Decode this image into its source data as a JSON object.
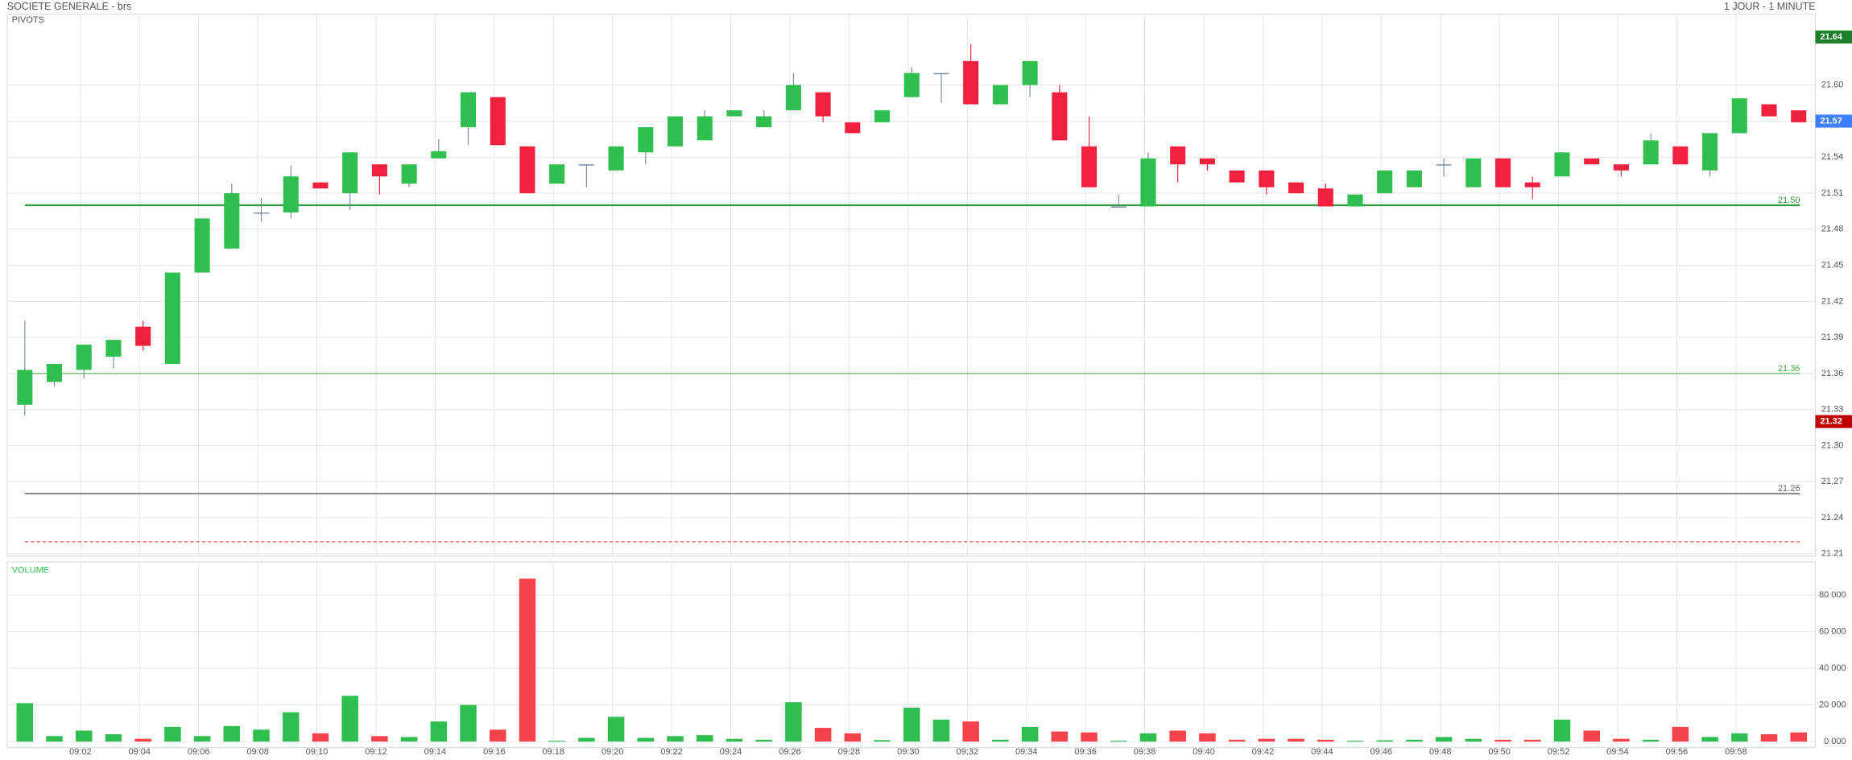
{
  "chart_data": {
    "type": "candlestick",
    "title": "SOCIETE GENERALE - brs",
    "subtitle": "1 JOUR - 1 MINUTE",
    "panel_label": "PIVOTS",
    "up_color": "#2fbf4f",
    "down_color": "#f0213f",
    "categories": [
      null,
      null,
      "09:02",
      null,
      "09:04",
      null,
      "09:06",
      null,
      "09:08",
      null,
      "09:10",
      null,
      "09:12",
      null,
      "09:14",
      null,
      "09:16",
      null,
      "09:18",
      null,
      "09:20",
      null,
      "09:22",
      null,
      "09:24",
      null,
      "09:26",
      null,
      "09:28",
      null,
      "09:30",
      null,
      "09:32",
      null,
      "09:34",
      null,
      "09:36",
      null,
      "09:38",
      null,
      "09:40",
      null,
      "09:42",
      null,
      "09:44",
      null,
      "09:46",
      null,
      "09:48",
      null,
      "09:50",
      null,
      "09:52",
      null,
      "09:54",
      null,
      "09:56",
      null,
      "09:58",
      null,
      null
    ],
    "open": [
      21.334,
      21.353,
      21.363,
      21.374,
      21.399,
      21.368,
      21.444,
      21.464,
      21.494,
      21.494,
      21.519,
      21.51,
      21.534,
      21.518,
      21.539,
      21.565,
      21.59,
      21.549,
      21.518,
      21.534,
      21.529,
      21.544,
      21.549,
      21.554,
      21.574,
      21.565,
      21.579,
      21.594,
      21.569,
      21.569,
      21.59,
      21.61,
      21.62,
      21.584,
      21.6,
      21.594,
      21.549,
      21.499,
      21.499,
      21.549,
      21.539,
      21.529,
      21.529,
      21.519,
      21.514,
      21.499,
      21.51,
      21.515,
      21.534,
      21.515,
      21.539,
      21.519,
      21.524,
      21.539,
      21.534,
      21.534,
      21.549,
      21.529,
      21.56,
      21.584,
      21.579
    ],
    "high": [
      21.404,
      21.368,
      21.384,
      21.388,
      21.404,
      21.444,
      21.489,
      21.518,
      21.506,
      21.533,
      21.519,
      21.544,
      21.534,
      21.534,
      21.555,
      21.594,
      21.59,
      21.549,
      21.534,
      21.534,
      21.549,
      21.565,
      21.574,
      21.579,
      21.579,
      21.579,
      21.61,
      21.594,
      21.569,
      21.579,
      21.615,
      21.61,
      21.634,
      21.6,
      21.62,
      21.6,
      21.574,
      21.509,
      21.544,
      21.549,
      21.539,
      21.529,
      21.529,
      21.519,
      21.518,
      21.509,
      21.529,
      21.529,
      21.539,
      21.539,
      21.539,
      21.524,
      21.544,
      21.539,
      21.534,
      21.56,
      21.549,
      21.56,
      21.589,
      21.584,
      21.579
    ],
    "low": [
      21.325,
      21.349,
      21.356,
      21.364,
      21.379,
      21.368,
      21.444,
      21.464,
      21.486,
      21.489,
      21.514,
      21.496,
      21.509,
      21.515,
      21.539,
      21.55,
      21.55,
      21.51,
      21.518,
      21.515,
      21.529,
      21.534,
      21.549,
      21.554,
      21.574,
      21.565,
      21.579,
      21.569,
      21.56,
      21.569,
      21.59,
      21.585,
      21.584,
      21.584,
      21.59,
      21.554,
      21.515,
      21.499,
      21.499,
      21.519,
      21.529,
      21.519,
      21.509,
      21.51,
      21.499,
      21.499,
      21.51,
      21.515,
      21.524,
      21.515,
      21.515,
      21.505,
      21.524,
      21.534,
      21.524,
      21.534,
      21.534,
      21.524,
      21.56,
      21.574,
      21.569
    ],
    "close": [
      21.363,
      21.368,
      21.384,
      21.388,
      21.383,
      21.444,
      21.489,
      21.51,
      21.494,
      21.524,
      21.514,
      21.544,
      21.524,
      21.534,
      21.545,
      21.594,
      21.55,
      21.51,
      21.534,
      21.534,
      21.549,
      21.565,
      21.574,
      21.574,
      21.579,
      21.574,
      21.6,
      21.574,
      21.56,
      21.579,
      21.61,
      21.61,
      21.584,
      21.6,
      21.62,
      21.554,
      21.515,
      21.499,
      21.539,
      21.534,
      21.534,
      21.519,
      21.515,
      21.51,
      21.499,
      21.509,
      21.529,
      21.529,
      21.534,
      21.539,
      21.515,
      21.515,
      21.544,
      21.534,
      21.529,
      21.554,
      21.534,
      21.56,
      21.589,
      21.574,
      21.569
    ],
    "ylim": [
      21.208,
      21.659
    ],
    "yticks": [
      21.21,
      21.24,
      21.27,
      {
        "value": 21.3,
        "label": "21.30"
      },
      21.33,
      21.36,
      21.39,
      21.42,
      21.45,
      21.48,
      21.51,
      21.54,
      21.57,
      {
        "value": 21.6,
        "label": "21.60"
      }
    ],
    "pivots": [
      {
        "value": 21.5,
        "label": "21.50",
        "color": "#2e9e3e",
        "width": 1.6
      },
      {
        "value": 21.36,
        "label": "21.36",
        "color": "#4caf50",
        "width": 0.8
      },
      {
        "value": 21.26,
        "label": "21.26",
        "color": "#666666",
        "width": 1
      },
      {
        "value": 21.22,
        "color": "#e53935",
        "width": 0.8,
        "dashed": true
      }
    ],
    "markers": [
      {
        "value": 21.64,
        "label": "21.64",
        "color": "#1b7f2a"
      },
      {
        "value": 21.57,
        "label": "21.57",
        "color": "#3d7fff"
      },
      {
        "value": 21.32,
        "label": "21.32",
        "color": "#c00000"
      }
    ],
    "volume": {
      "label": "VOLUME",
      "values": [
        21000,
        3000,
        6000,
        4000,
        1500,
        8000,
        3000,
        8500,
        6500,
        16000,
        4500,
        25000,
        3000,
        2500,
        11000,
        20000,
        6500,
        89000,
        500,
        2000,
        13500,
        2000,
        3000,
        3500,
        1500,
        1000,
        21500,
        7500,
        4500,
        800,
        18500,
        12000,
        11000,
        1000,
        8000,
        5500,
        5000,
        500,
        4500,
        6000,
        4500,
        1000,
        1500,
        1500,
        1000,
        500,
        700,
        1000,
        2500,
        1500,
        1000,
        1000,
        12000,
        6000,
        1500,
        1000,
        8000,
        2500,
        4500,
        4000,
        5000
      ],
      "ylim": [
        0,
        98000
      ],
      "yticks": [
        {
          "value": 0,
          "label": "0 000"
        },
        {
          "value": 20000,
          "label": "20 000"
        },
        {
          "value": 40000,
          "label": "40 000"
        },
        {
          "value": 60000,
          "label": "60 000"
        },
        {
          "value": 80000,
          "label": "80 000"
        }
      ]
    }
  }
}
